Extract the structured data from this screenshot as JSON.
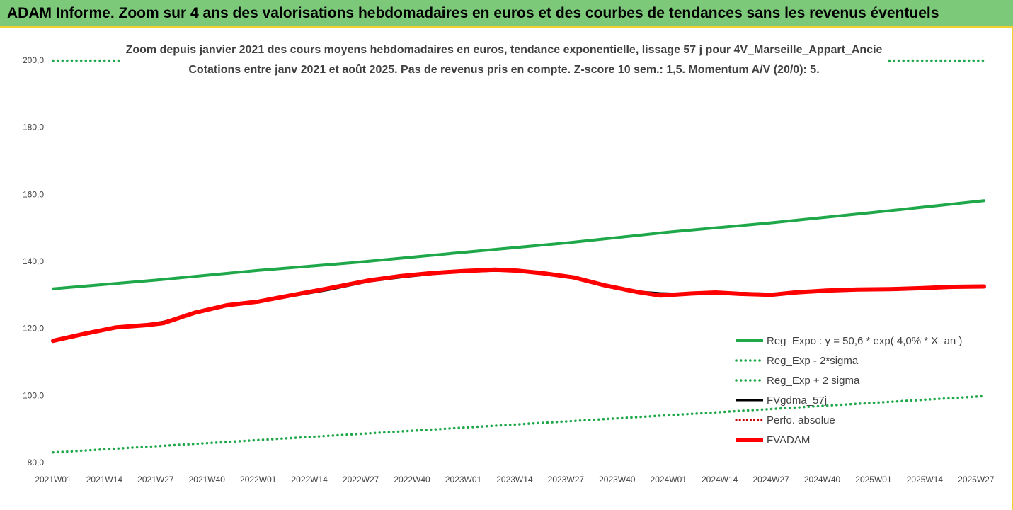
{
  "banner": {
    "title": "ADAM Informe. Zoom sur 4 ans des valorisations hebdomadaires en euros et des courbes de tendances sans les revenus éventuels"
  },
  "colors": {
    "banner_bg": "#7dc97a",
    "reg_expo": "#1fa84a",
    "fvgdma": "#000000",
    "fvadam": "#ff0000",
    "perfo": "#c00000",
    "frame": "#f2d230"
  },
  "chart_data": {
    "type": "line",
    "title": "Zoom depuis janvier 2021 des cours moyens hebdomadaires en euros, tendance exponentielle, lissage 57 j pour 4V_Marseille_Appart_Ancie",
    "subtitle": "Cotations entre janv 2021 et août 2025.  Pas de revenus pris en compte. Z-score 10 sem.: 1,5. Momentum A/V (20/0): 5.",
    "xlabel": "",
    "ylabel": "",
    "ylim": [
      80,
      200
    ],
    "yticks": [
      "80,0",
      "100,0",
      "120,0",
      "140,0",
      "160,0",
      "180,0",
      "200,0"
    ],
    "ytick_values": [
      80,
      100,
      120,
      140,
      160,
      180,
      200
    ],
    "grid": false,
    "legend_position": "bottom-right",
    "x_tick_labels": [
      "2021W01",
      "2021W14",
      "2021W27",
      "2021W40",
      "2022W01",
      "2022W14",
      "2022W27",
      "2022W40",
      "2023W01",
      "2023W14",
      "2023W27",
      "2023W40",
      "2024W01",
      "2024W14",
      "2024W27",
      "2024W40",
      "2025W01",
      "2025W14",
      "2025W27"
    ],
    "x_tick_index": [
      0,
      13,
      26,
      39,
      52,
      65,
      78,
      91,
      104,
      117,
      130,
      143,
      156,
      169,
      182,
      195,
      208,
      221,
      234
    ],
    "x_range_index": [
      0,
      236
    ],
    "series": [
      {
        "name": "Reg_Expo : y = 50,6 * exp( 4,0% *  X_an )",
        "style": "solid-green",
        "x_index": [
          0,
          26,
          52,
          78,
          104,
          130,
          156,
          182,
          208,
          236
        ],
        "values": [
          131.8,
          134.4,
          137.3,
          139.8,
          142.7,
          145.5,
          148.7,
          151.5,
          154.6,
          158.1
        ]
      },
      {
        "name": "Reg_Exp - 2*sigma",
        "style": "dotted-green",
        "x_index": [
          0,
          236
        ],
        "values": [
          83.0,
          99.8
        ]
      },
      {
        "name": "Reg_Exp + 2 sigma",
        "style": "dotted-green",
        "x_index": [
          0,
          236
        ],
        "values": [
          199.9,
          199.9
        ]
      },
      {
        "name": "FVgdma_57j",
        "style": "solid-black",
        "x_index": [
          0,
          8,
          16,
          24,
          28,
          36,
          44,
          52,
          60,
          70,
          80,
          88,
          96,
          104,
          112,
          118,
          124,
          132,
          140,
          148,
          154,
          162,
          168,
          174,
          182,
          188,
          196,
          204,
          212,
          220,
          228,
          236
        ],
        "values": [
          116.3,
          118.4,
          120.2,
          121.2,
          122.0,
          124.5,
          126.6,
          128.0,
          129.5,
          131.5,
          134.0,
          135.2,
          136.2,
          136.9,
          137.2,
          137.1,
          136.6,
          135.2,
          132.8,
          131.0,
          130.5,
          130.2,
          130.4,
          130.6,
          130.3,
          130.5,
          131.1,
          131.5,
          131.5,
          131.9,
          132.2,
          132.4
        ]
      },
      {
        "name": "Perfo. absolue",
        "style": "dotted-red",
        "x_index": [],
        "values": []
      },
      {
        "name": "FVADAM",
        "style": "thick-red",
        "x_index": [
          0,
          8,
          16,
          24,
          28,
          36,
          44,
          52,
          60,
          70,
          80,
          88,
          96,
          104,
          112,
          118,
          124,
          132,
          140,
          148,
          154,
          162,
          168,
          174,
          182,
          188,
          196,
          204,
          212,
          220,
          228,
          236
        ],
        "values": [
          116.3,
          118.4,
          120.3,
          121.0,
          121.6,
          124.7,
          126.9,
          128.0,
          129.8,
          132.0,
          134.3,
          135.6,
          136.5,
          137.1,
          137.5,
          137.2,
          136.5,
          135.2,
          132.8,
          130.9,
          129.8,
          130.4,
          130.7,
          130.3,
          130.0,
          130.7,
          131.3,
          131.6,
          131.7,
          132.0,
          132.4,
          132.5
        ]
      }
    ]
  }
}
